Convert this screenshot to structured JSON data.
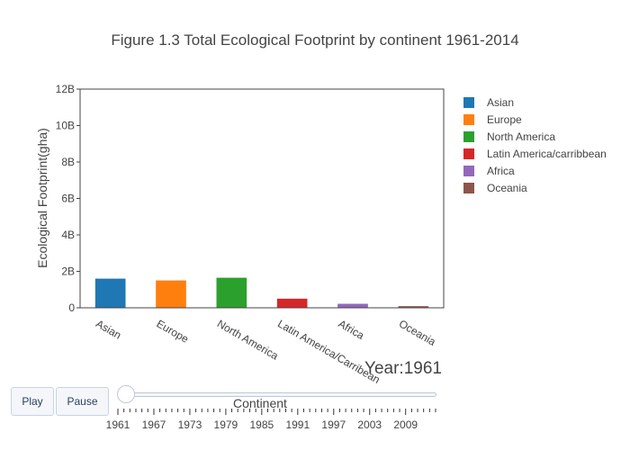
{
  "chart_data": {
    "type": "bar",
    "title": "Figure 1.3 Total Ecological Footprint by continent 1961-2014",
    "xlabel": "",
    "ylabel": "Ecological Footprint(gha)",
    "categories": [
      "Asian",
      "Europe",
      "North America",
      "Latin America/Carribean",
      "Africa",
      "Oceania"
    ],
    "series": [
      {
        "name": "Asian",
        "category": "Asian",
        "value": 1600000000,
        "color": "#1f77b4"
      },
      {
        "name": "Europe",
        "category": "Europe",
        "value": 1500000000,
        "color": "#ff7f0e"
      },
      {
        "name": "North America",
        "category": "North America",
        "value": 1650000000,
        "color": "#2ca02c"
      },
      {
        "name": "Latin America/carribbean",
        "category": "Latin America/Carribean",
        "value": 500000000,
        "color": "#d62728"
      },
      {
        "name": "Africa",
        "category": "Africa",
        "value": 220000000,
        "color": "#9467bd"
      },
      {
        "name": "Oceania",
        "category": "Oceania",
        "value": 90000000,
        "color": "#8c564b"
      }
    ],
    "ylim": [
      0,
      12000000000
    ],
    "yticks": [
      0,
      2000000000,
      4000000000,
      6000000000,
      8000000000,
      10000000000,
      12000000000
    ],
    "ytick_labels": [
      "0",
      "2B",
      "4B",
      "6B",
      "8B",
      "10B",
      "12B"
    ],
    "grid": false,
    "legend_position": "right"
  },
  "controls": {
    "play_label": "Play",
    "pause_label": "Pause",
    "slider_prefix": "Year:",
    "slider_current": "1961",
    "slider_label": "Continent",
    "slider_tick_labels": [
      "1961",
      "1967",
      "1973",
      "1979",
      "1985",
      "1991",
      "1997",
      "2003",
      "2009"
    ],
    "slider_step_count": 54,
    "slider_value": 0
  }
}
